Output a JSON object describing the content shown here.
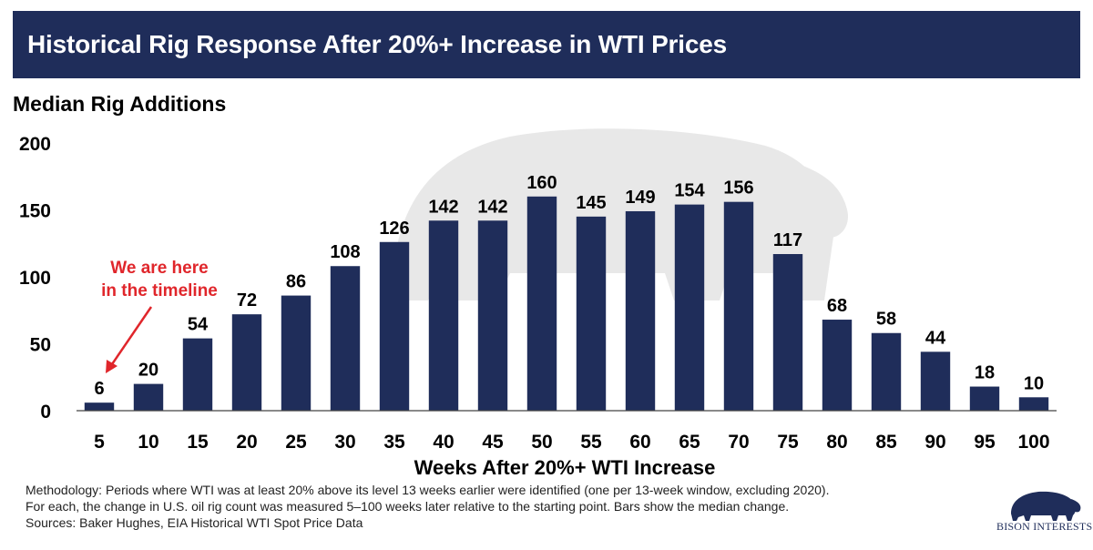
{
  "header": {
    "title": "Historical Rig Response After 20%+ Increase in WTI Prices"
  },
  "chart_data": {
    "type": "bar",
    "title": "Median Rig Additions",
    "xlabel": "Weeks After 20%+ WTI Increase",
    "ylabel": "",
    "categories": [
      "5",
      "10",
      "15",
      "20",
      "25",
      "30",
      "35",
      "40",
      "45",
      "50",
      "55",
      "60",
      "65",
      "70",
      "75",
      "80",
      "85",
      "90",
      "95",
      "100"
    ],
    "values": [
      6,
      20,
      54,
      72,
      86,
      108,
      126,
      142,
      142,
      160,
      145,
      149,
      154,
      156,
      117,
      68,
      58,
      44,
      18,
      10
    ],
    "ylim": [
      0,
      200
    ],
    "yticks": [
      0,
      50,
      100,
      150,
      200
    ],
    "grid": false,
    "bar_color": "#1f2d5a",
    "annotation": {
      "lines": [
        "We are here",
        "in the timeline"
      ],
      "target_category": "5",
      "color": "#e0262b"
    }
  },
  "footnote": {
    "lines": [
      "Methodology: Periods where WTI was at least 20% above its level 13 weeks earlier were identified (one per 13-week window, excluding 2020).",
      "For each, the change in U.S. oil rig count was measured 5–100 weeks later relative to the starting point. Bars show the median change.",
      "Sources: Baker Hughes, EIA Historical WTI Spot Price Data"
    ]
  },
  "brand": {
    "name": "BISON INTERESTS",
    "icon": "bison-icon"
  },
  "colors": {
    "navy": "#1f2d5a",
    "accent_red": "#e0262b",
    "watermark": "#e6e6e6"
  }
}
